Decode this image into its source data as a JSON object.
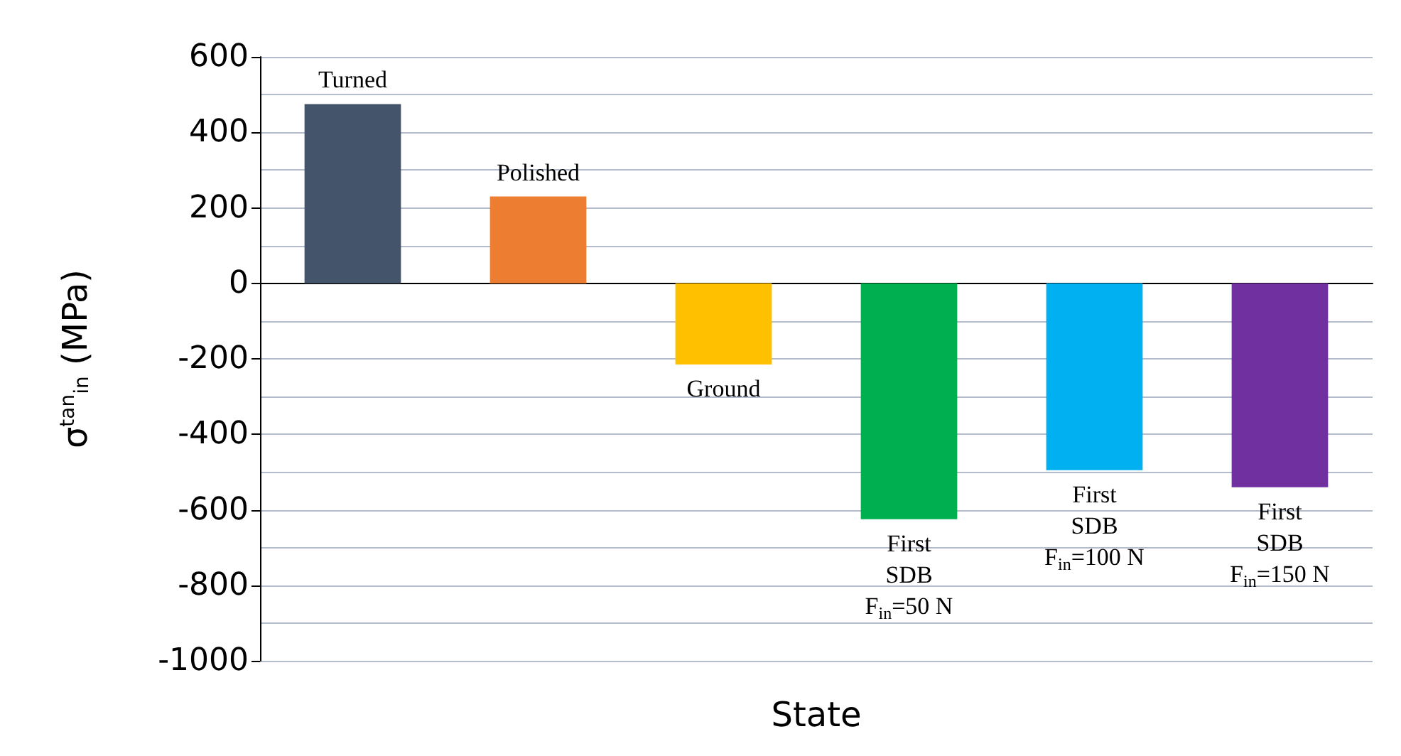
{
  "chart_data": {
    "type": "bar",
    "xlabel": "State",
    "ylabel": "σ$^{tan}$$_{in}$ (MPa)",
    "categories": [
      "Turned",
      "Polished",
      "Ground",
      "First\nSDB\nF$_{in}$=50 N",
      "First\nSDB\nF$_{in}$=100 N",
      "First\nSDB\nF$_{in}$=150 N"
    ],
    "values": [
      475,
      230,
      -215,
      -625,
      -495,
      -540
    ],
    "colors": [
      "#44546a",
      "#ed7d31",
      "#ffc000",
      "#00b050",
      "#00b0f0",
      "#7030a0"
    ],
    "ylim": [
      -1000,
      600
    ],
    "yticks": [
      -1000,
      {
        "value": -900,
        "label": null
      },
      -800,
      {
        "value": -700,
        "label": null
      },
      -600,
      {
        "value": -500,
        "label": null
      },
      -400,
      {
        "value": -300,
        "label": null
      },
      -200,
      {
        "value": -100,
        "label": null
      },
      0,
      {
        "value": 100,
        "label": null
      },
      200,
      {
        "value": 300,
        "label": null
      },
      400,
      {
        "value": 500,
        "label": null
      },
      600
    ],
    "grid": "y"
  }
}
